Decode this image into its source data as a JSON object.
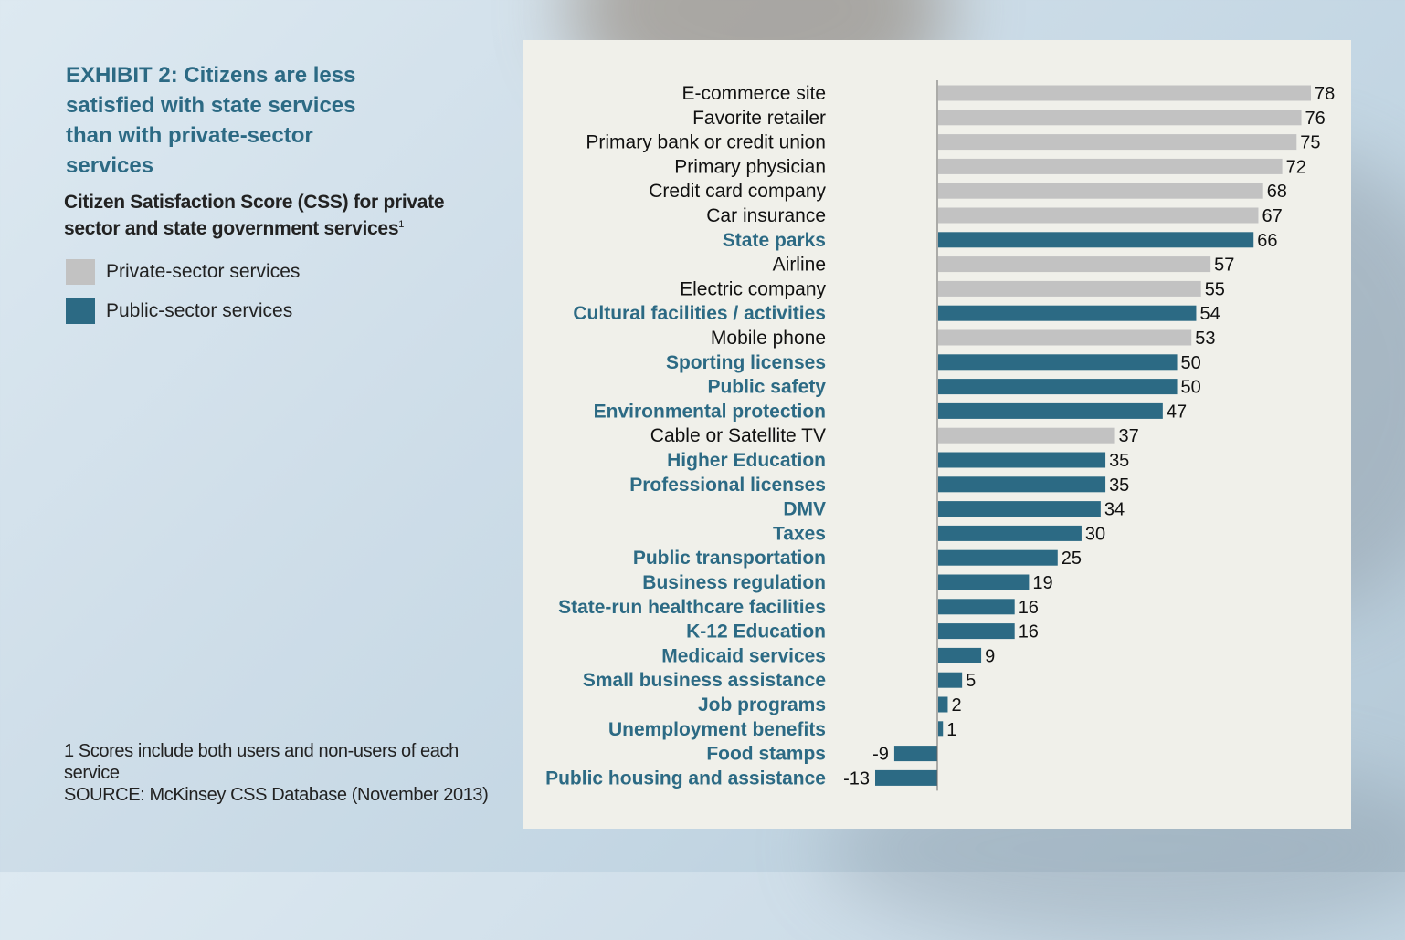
{
  "header": {
    "title": "EXHIBIT 2:  Citizens are less satisfied with state services than with private-sector services",
    "subtitle": "Citizen Satisfaction Score (CSS) for private sector and state government services",
    "subtitle_footnote_mark": "1"
  },
  "legend": {
    "items": [
      {
        "label": "Private-sector services",
        "color": "#c2c2c2"
      },
      {
        "label": "Public-sector services",
        "color": "#2c6a84"
      }
    ]
  },
  "footnote": {
    "line1": "1 Scores include both users and non-users of each service",
    "line2": "SOURCE:  McKinsey CSS Database (November 2013)"
  },
  "chart_data": {
    "type": "bar",
    "orientation": "horizontal",
    "xlim": [
      -13,
      78
    ],
    "colors": {
      "private": "#c2c2c2",
      "public": "#2c6a84"
    },
    "categories": [
      {
        "label": "E-commerce site",
        "value": 78,
        "sector": "private"
      },
      {
        "label": "Favorite retailer",
        "value": 76,
        "sector": "private"
      },
      {
        "label": "Primary bank or credit union",
        "value": 75,
        "sector": "private"
      },
      {
        "label": "Primary physician",
        "value": 72,
        "sector": "private"
      },
      {
        "label": "Credit card company",
        "value": 68,
        "sector": "private"
      },
      {
        "label": "Car insurance",
        "value": 67,
        "sector": "private"
      },
      {
        "label": "State parks",
        "value": 66,
        "sector": "public"
      },
      {
        "label": "Airline",
        "value": 57,
        "sector": "private"
      },
      {
        "label": "Electric company",
        "value": 55,
        "sector": "private"
      },
      {
        "label": "Cultural facilities / activities",
        "value": 54,
        "sector": "public"
      },
      {
        "label": "Mobile phone",
        "value": 53,
        "sector": "private"
      },
      {
        "label": "Sporting licenses",
        "value": 50,
        "sector": "public"
      },
      {
        "label": "Public safety",
        "value": 50,
        "sector": "public"
      },
      {
        "label": "Environmental protection",
        "value": 47,
        "sector": "public"
      },
      {
        "label": "Cable or Satellite TV",
        "value": 37,
        "sector": "private"
      },
      {
        "label": "Higher Education",
        "value": 35,
        "sector": "public"
      },
      {
        "label": "Professional licenses",
        "value": 35,
        "sector": "public"
      },
      {
        "label": "DMV",
        "value": 34,
        "sector": "public"
      },
      {
        "label": "Taxes",
        "value": 30,
        "sector": "public"
      },
      {
        "label": "Public transportation",
        "value": 25,
        "sector": "public"
      },
      {
        "label": "Business regulation",
        "value": 19,
        "sector": "public"
      },
      {
        "label": "State-run healthcare facilities",
        "value": 16,
        "sector": "public"
      },
      {
        "label": "K-12 Education",
        "value": 16,
        "sector": "public"
      },
      {
        "label": "Medicaid services",
        "value": 9,
        "sector": "public"
      },
      {
        "label": "Small business assistance",
        "value": 5,
        "sector": "public"
      },
      {
        "label": "Job programs",
        "value": 2,
        "sector": "public"
      },
      {
        "label": "Unemployment benefits",
        "value": 1,
        "sector": "public"
      },
      {
        "label": "Food stamps",
        "value": -9,
        "sector": "public"
      },
      {
        "label": "Public housing and assistance",
        "value": -13,
        "sector": "public"
      }
    ]
  }
}
